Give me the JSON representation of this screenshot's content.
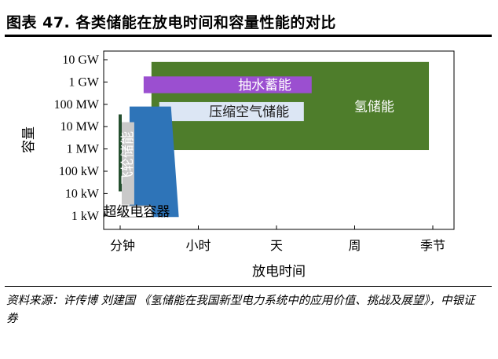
{
  "figure": {
    "title": "图表 47. 各类储能在放电时间和容量性能的对比",
    "source": "资料来源：许传博 刘建国 《氢储能在我国新型电力系统中的应用价值、挑战及展望》，中银证券"
  },
  "chart_data": {
    "type": "range-area",
    "xlabel": "放电时间",
    "ylabel": "容量",
    "x_ticks": [
      "分钟",
      "小时",
      "天",
      "周",
      "季节"
    ],
    "y_ticks": [
      "10 GW",
      "1 GW",
      "100 MW",
      "10 MW",
      "1 MW",
      "100 kW",
      "10 kW",
      "1 kW"
    ],
    "y_scale": "log",
    "grid": false,
    "legend": "none",
    "x_unit_note": "x positions in tick-index units (0 = 分钟, 4 = 季节)",
    "y_unit_note": "y positions in log10(W)",
    "regions": [
      {
        "name": "氢储能",
        "color": "#4e7d2b",
        "x_range": [
          0.4,
          3.95
        ],
        "y_range": [
          5.95,
          9.9
        ]
      },
      {
        "name": "抽水蓄能",
        "color": "#9b4fd0",
        "x_range": [
          0.3,
          2.45
        ],
        "y_range": [
          8.5,
          9.25
        ]
      },
      {
        "name": "压缩空气储能",
        "color": "#dce6f4",
        "x_range": [
          0.5,
          2.35
        ],
        "y_range": [
          7.25,
          8.1
        ]
      },
      {
        "name": "电化学储能",
        "color": "#2e74b8",
        "polygon_x": [
          0.12,
          0.65,
          0.75,
          0.42,
          0.4,
          0.12
        ],
        "polygon_y": [
          7.9,
          7.9,
          2.95,
          2.95,
          3.4,
          3.4
        ]
      },
      {
        "name": "飞轮储能",
        "color": "#c9c9c9",
        "x_range": [
          0.02,
          0.18
        ],
        "y_range": [
          3.5,
          7.2
        ]
      },
      {
        "name": "超级电容器",
        "color": "#ffffff",
        "x_range": [
          0.02,
          0.4
        ],
        "y_range": [
          2.95,
          3.45
        ]
      }
    ],
    "line_marks": [
      {
        "name": "dark-green-bar",
        "color": "#244f2e",
        "x": 0.0,
        "y_range": [
          4.1,
          7.55
        ]
      }
    ]
  }
}
